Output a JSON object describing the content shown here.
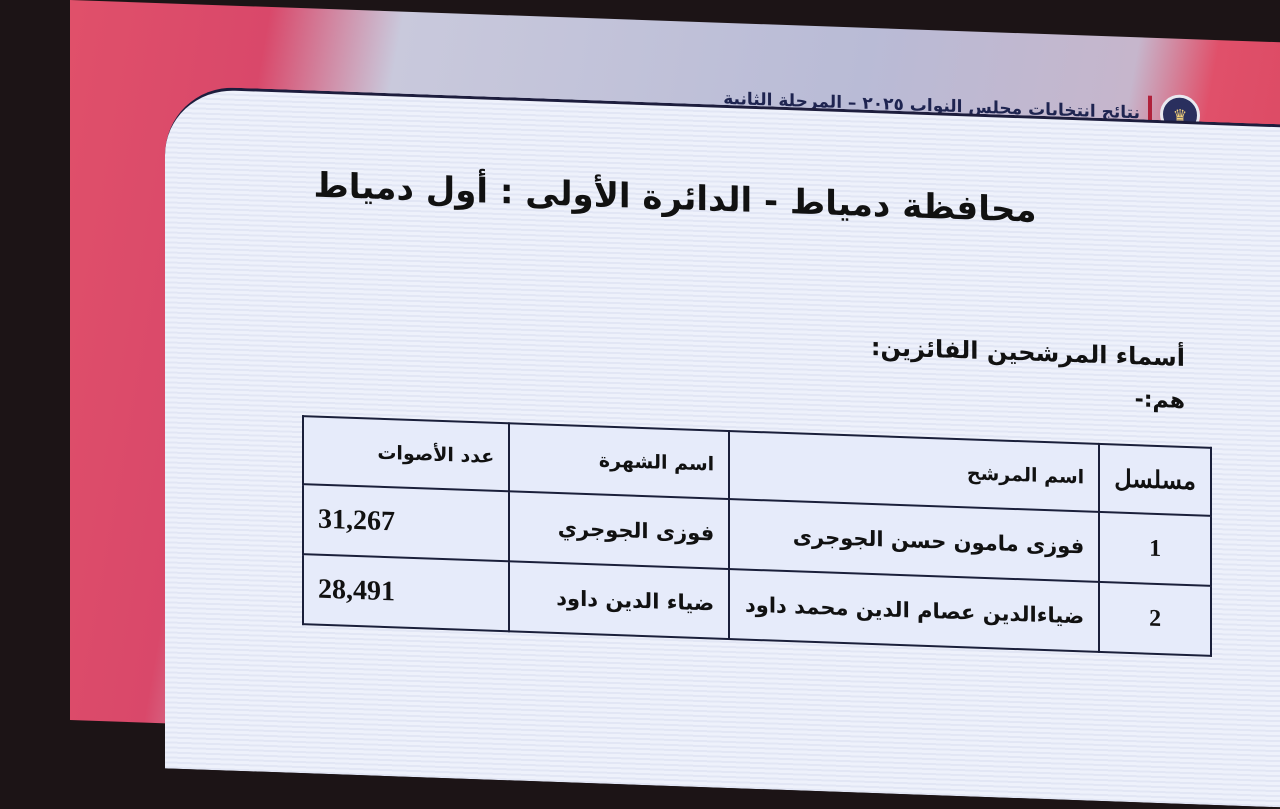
{
  "header": {
    "title": "نتائج انتخابات مجلس النواب ٢٠٢٥ – المرحلة الثانية",
    "emblem_icon": "egypt-eagle-emblem"
  },
  "slide": {
    "title": "محافظة دمياط - الدائرة الأولى : أول دمياط",
    "winners_label": "أسماء المرشحين الفائزين:",
    "they_are": "هم:-"
  },
  "table": {
    "headers": [
      "مسلسل",
      "اسم المرشح",
      "اسم الشهرة",
      "عدد الأصوات"
    ],
    "rows": [
      [
        "1",
        "فوزى مامون حسن الجوجرى",
        "فوزى الجوجري",
        "31,267"
      ],
      [
        "2",
        "ضياءالدين عصام الدين محمد داود",
        "ضياء الدين داود",
        "28,491"
      ]
    ]
  },
  "colors": {
    "accent": "#d9486a",
    "text": "#111111",
    "header_text": "#1e2450"
  }
}
